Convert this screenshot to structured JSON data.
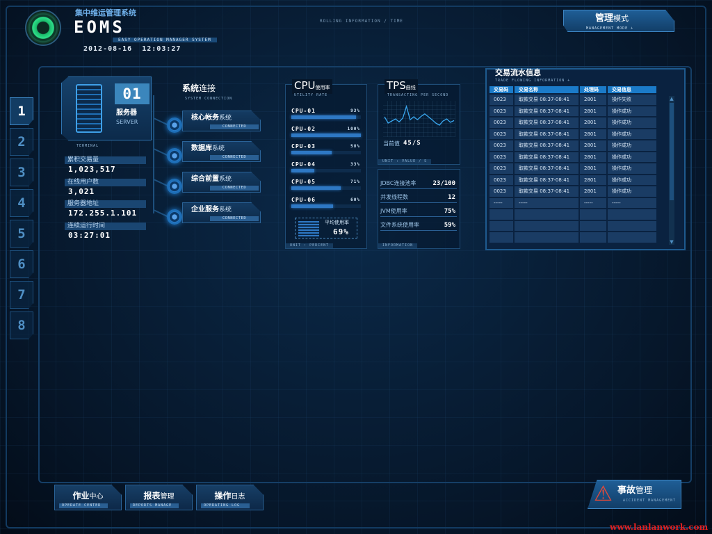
{
  "header": {
    "subtitle_cn": "集中维运管理系统",
    "logo": "EOMS",
    "tagline": "EASY OPERATION MANAGER SYSTEM",
    "datetime": "2012-08-16  12:03:27",
    "rolling": "ROLLING INFORMATION  /  TIME"
  },
  "mode": {
    "title_bold": "管理",
    "title_rest": "模式",
    "en": "MANAGEMENT MODE  +"
  },
  "tabs": [
    "1",
    "2",
    "3",
    "4",
    "5",
    "6",
    "7",
    "8"
  ],
  "server": {
    "number": "01",
    "name": "服务器",
    "en": "SERVER",
    "terminal": "TERMINAL"
  },
  "stats": [
    {
      "label": "累积交易量",
      "value": "1,023,517"
    },
    {
      "label": "在线用户数",
      "value": "3,021"
    },
    {
      "label": "服务器地址",
      "value": "172.255.1.101"
    },
    {
      "label": "连续运行时间",
      "value": "03:27:01"
    }
  ],
  "connection": {
    "title_bold": "系统",
    "title_rest": "连接",
    "en": "SYSTEM CONNECTION",
    "items": [
      {
        "name": "核心帐务",
        "suffix": "系统",
        "status": "CONNECTED"
      },
      {
        "name": "数据库",
        "suffix": "系统",
        "status": "CONNECTED"
      },
      {
        "name": "综合前置",
        "suffix": "系统",
        "status": "CONNECTED"
      },
      {
        "name": "企业服务",
        "suffix": "系统",
        "status": "CONNECTED"
      }
    ]
  },
  "cpu": {
    "title": "CPU",
    "title_cn": "使用率",
    "en": "UTILITY RATE",
    "unit": "UNIT : PERCENT",
    "avg_label": "平均使用率",
    "avg": "69%",
    "items": [
      {
        "name": "CPU-01",
        "value": 93,
        "label": "93%"
      },
      {
        "name": "CPU-02",
        "value": 100,
        "label": "100%"
      },
      {
        "name": "CPU-03",
        "value": 58,
        "label": "58%"
      },
      {
        "name": "CPU-04",
        "value": 33,
        "label": "33%"
      },
      {
        "name": "CPU-05",
        "value": 71,
        "label": "71%"
      },
      {
        "name": "CPU-06",
        "value": 60,
        "label": "60%"
      }
    ]
  },
  "tps": {
    "title": "TPS",
    "title_cn": "曲线",
    "en": "TRANSACTING PER SECOND",
    "current_label": "当前值",
    "current": "45/S",
    "unit": "UNIT : VALUE / S",
    "series": [
      45,
      30,
      35,
      40,
      33,
      42,
      70,
      38,
      45,
      38,
      46,
      52,
      45,
      38,
      30,
      25,
      35,
      40,
      32,
      36
    ]
  },
  "info": {
    "footer": "INFORMATION",
    "items": [
      {
        "label": "JDBC连接池率",
        "value": "23/100"
      },
      {
        "label": "并发线程数",
        "value": "12"
      },
      {
        "label": "JVM使用率",
        "value": "75%"
      },
      {
        "label": "文件系统使用率",
        "value": "59%"
      }
    ]
  },
  "trade": {
    "title": "交易流水信息",
    "en": "TRADE FLOWING INFORMATION +",
    "columns": [
      "交易码",
      "交易名称",
      "处理码",
      "交易信息"
    ],
    "rows": [
      [
        "0023",
        "取款交易  08:37-08:41",
        "2801",
        "操作失败"
      ],
      [
        "0023",
        "取款交易  08:37-08:41",
        "2801",
        "操作成功"
      ],
      [
        "0023",
        "取款交易  08:37-08:41",
        "2801",
        "操作成功"
      ],
      [
        "0023",
        "取款交易  08:37-08:41",
        "2801",
        "操作成功"
      ],
      [
        "0023",
        "取款交易  08:37-08:41",
        "2801",
        "操作成功"
      ],
      [
        "0023",
        "取款交易  08:37-08:41",
        "2801",
        "操作成功"
      ],
      [
        "0023",
        "取款交易  08:37-08:41",
        "2801",
        "操作成功"
      ],
      [
        "0023",
        "取款交易  08:37-08:41",
        "2801",
        "操作成功"
      ],
      [
        "0023",
        "取款交易  08:37-08:41",
        "2801",
        "操作成功"
      ],
      [
        "-----",
        "-----",
        "-----",
        "-----"
      ],
      [
        "",
        "",
        "",
        ""
      ],
      [
        "",
        "",
        "",
        ""
      ],
      [
        "",
        "",
        "",
        ""
      ]
    ]
  },
  "bottom": [
    {
      "bold": "作业",
      "rest": "中心",
      "en": "OPERATE CENTER"
    },
    {
      "bold": "报表",
      "rest": "管理",
      "en": "REPORTS MANAGE"
    },
    {
      "bold": "操作",
      "rest": "日志",
      "en": "OPERATING LOG"
    }
  ],
  "accident": {
    "bold": "事故",
    "rest": "管理",
    "en": "ACCIDENT MANAGEMENT"
  },
  "watermark": "www.lanlanwork.com",
  "colors": {
    "accent": "#1b7bc9",
    "background": "#051326",
    "logo_green": "#2ee08a",
    "warning": "#e04a3a"
  }
}
